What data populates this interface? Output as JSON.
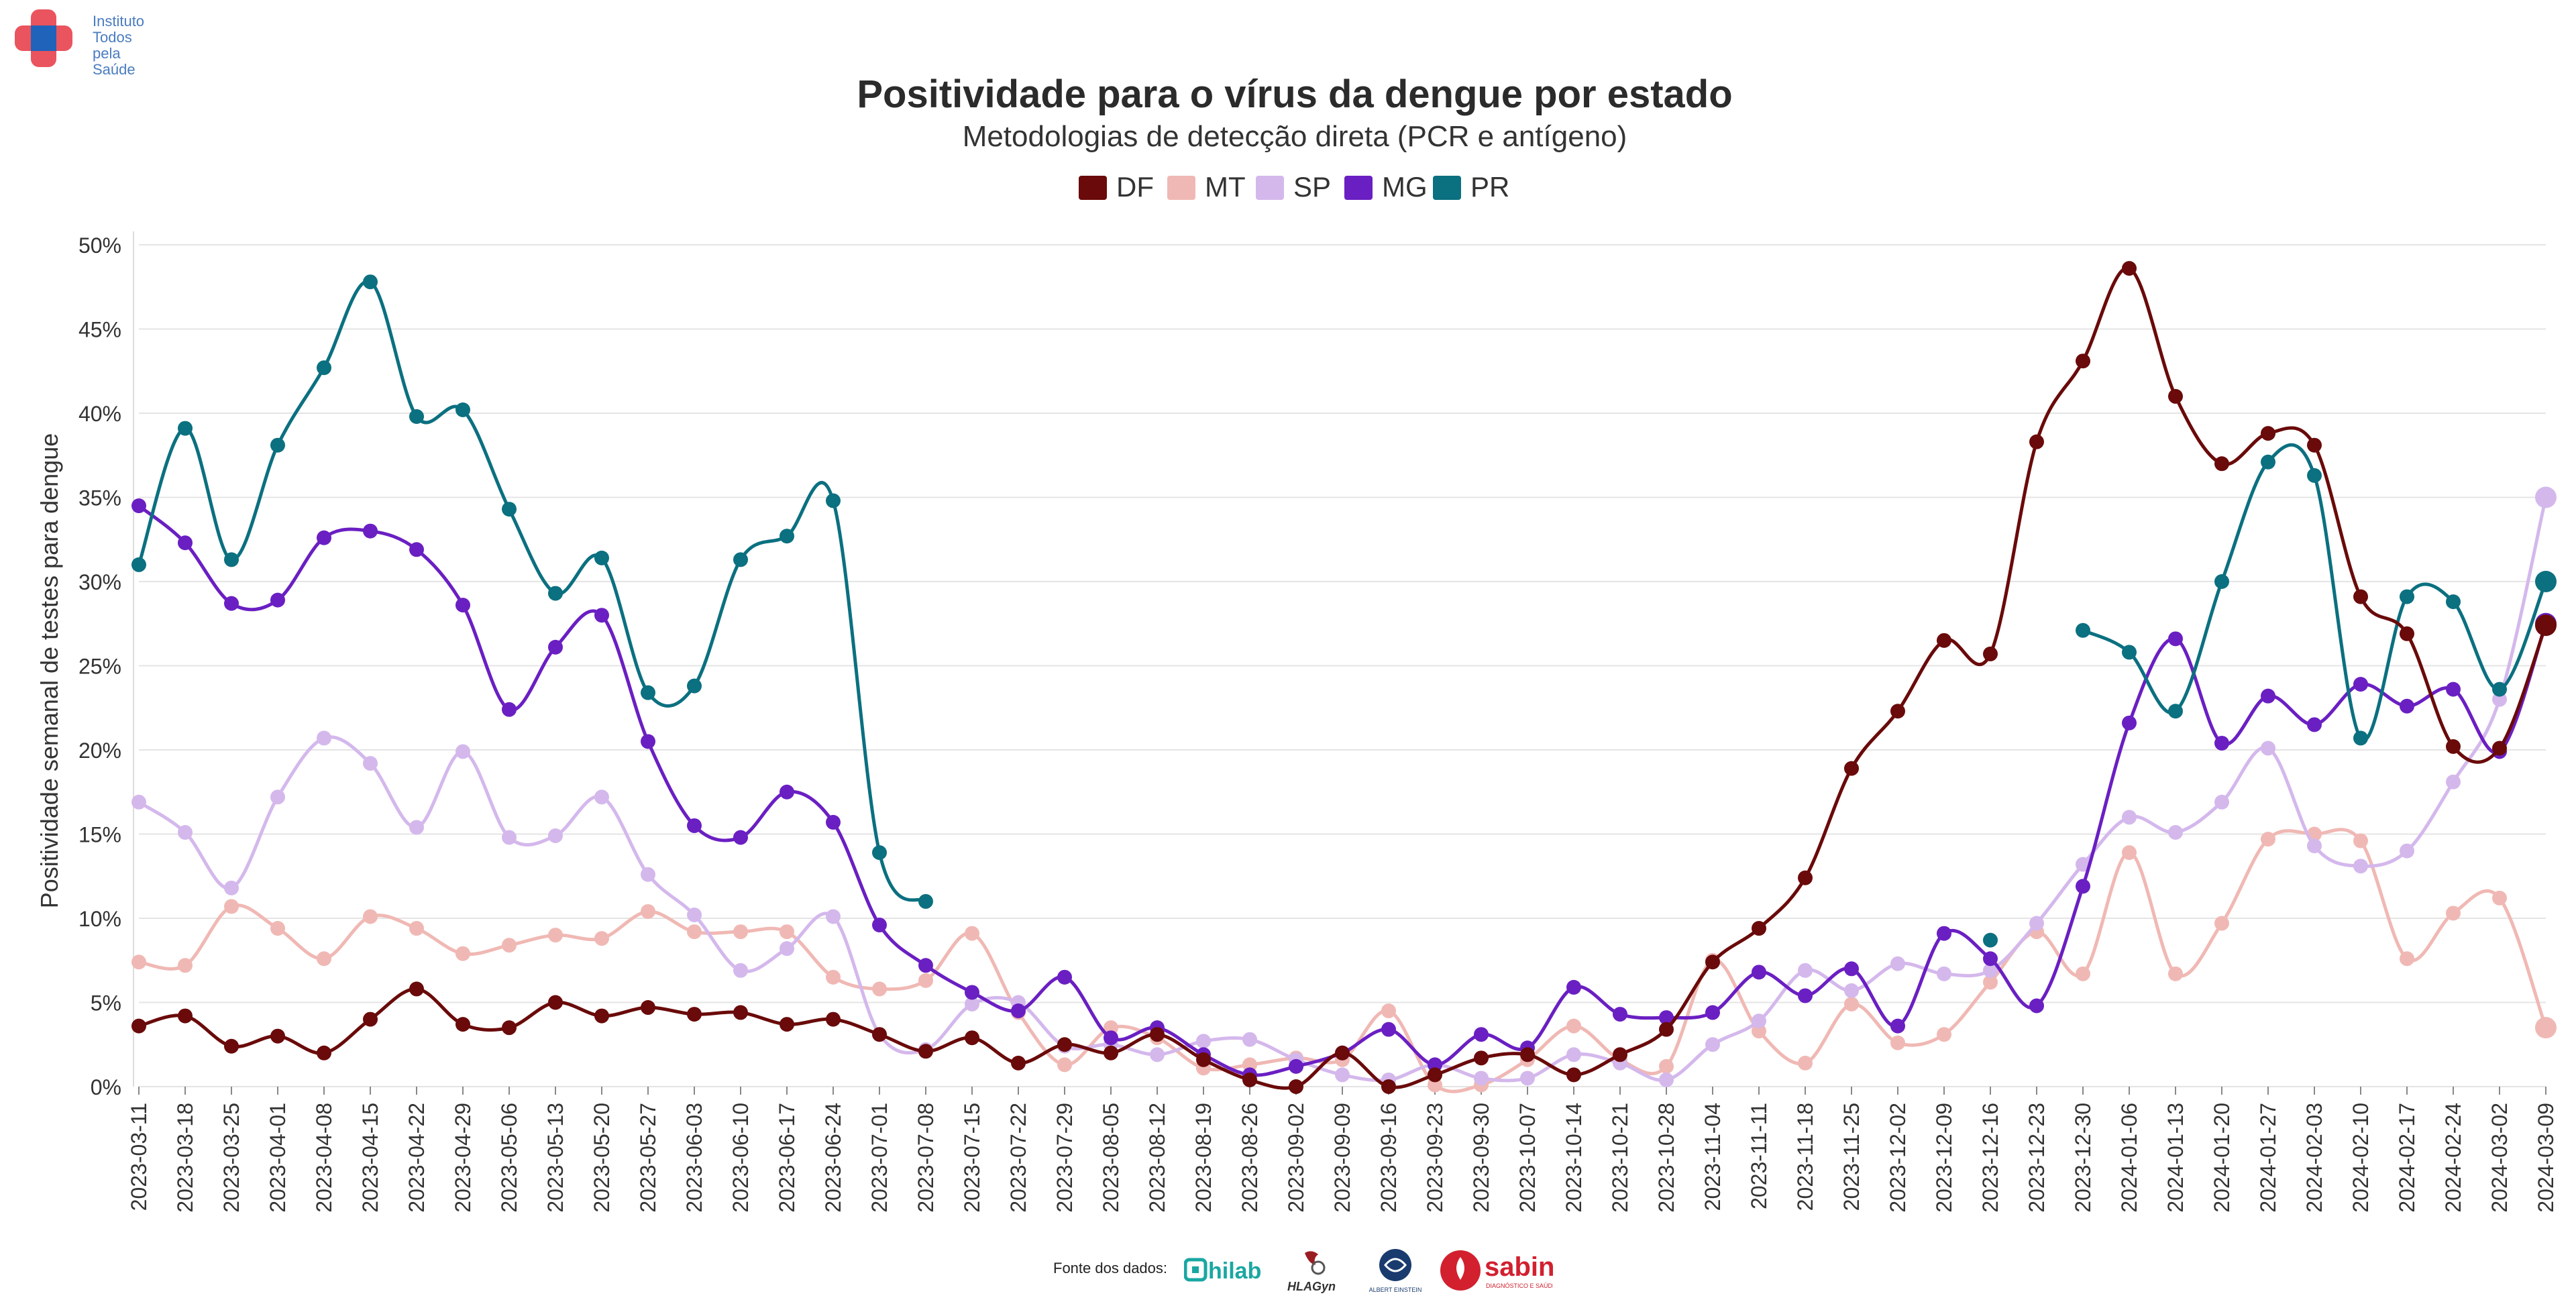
{
  "org": {
    "logo_lines": [
      "Instituto",
      "Todos",
      "pela",
      "Saúde"
    ],
    "colors": {
      "red": "#e8414d",
      "blue": "#1565c0"
    }
  },
  "sources": {
    "label": "Fonte dos dados:",
    "labs": [
      {
        "name": "hilab",
        "color": "#1aa7a2",
        "text": "hilab"
      },
      {
        "name": "hlagyn",
        "color": "#333333",
        "text": "HLAGyn"
      },
      {
        "name": "einstein",
        "color": "#1a3b6e",
        "text": "ALBERT EINSTEIN"
      },
      {
        "name": "sabin",
        "color": "#d2202f",
        "text": "sabin",
        "subtext": "DIAGNÓSTICO E SAÚDE"
      }
    ]
  },
  "chart_data": {
    "type": "line",
    "title": "Positividade para o vírus da dengue por estado",
    "subtitle": "Metodologias de detecção direta (PCR e antígeno)",
    "ylabel": "Positividade semanal de testes para dengue",
    "xlabel": "",
    "ylim": [
      0,
      50
    ],
    "yticks": [
      "0%",
      "5%",
      "10%",
      "15%",
      "20%",
      "25%",
      "30%",
      "35%",
      "40%",
      "45%",
      "50%"
    ],
    "grid": true,
    "legend": "top-center",
    "categories": [
      "2023-03-11",
      "2023-03-18",
      "2023-03-25",
      "2023-04-01",
      "2023-04-08",
      "2023-04-15",
      "2023-04-22",
      "2023-04-29",
      "2023-05-06",
      "2023-05-13",
      "2023-05-20",
      "2023-05-27",
      "2023-06-03",
      "2023-06-10",
      "2023-06-17",
      "2023-06-24",
      "2023-07-01",
      "2023-07-08",
      "2023-07-15",
      "2023-07-22",
      "2023-07-29",
      "2023-08-05",
      "2023-08-12",
      "2023-08-19",
      "2023-08-26",
      "2023-09-02",
      "2023-09-09",
      "2023-09-16",
      "2023-09-23",
      "2023-09-30",
      "2023-10-07",
      "2023-10-14",
      "2023-10-21",
      "2023-10-28",
      "2023-11-04",
      "2023-11-11",
      "2023-11-18",
      "2023-11-25",
      "2023-12-02",
      "2023-12-09",
      "2023-12-16",
      "2023-12-23",
      "2023-12-30",
      "2024-01-06",
      "2024-01-13",
      "2024-01-20",
      "2024-01-27",
      "2024-02-03",
      "2024-02-10",
      "2024-02-17",
      "2024-02-24",
      "2024-03-02",
      "2024-03-09"
    ],
    "series": [
      {
        "name": "MT",
        "color": "#f0b8b4",
        "values": [
          7.4,
          7.2,
          10.7,
          9.4,
          7.6,
          10.1,
          9.4,
          7.9,
          8.4,
          9.0,
          8.8,
          10.4,
          9.2,
          9.2,
          9.2,
          6.5,
          5.8,
          6.3,
          9.1,
          4.4,
          1.3,
          3.5,
          2.9,
          1.1,
          1.3,
          1.7,
          1.6,
          4.5,
          0.1,
          0.1,
          1.6,
          3.6,
          1.6,
          1.2,
          7.5,
          3.3,
          1.4,
          4.9,
          2.6,
          3.1,
          6.2,
          9.2,
          6.7,
          13.9,
          6.7,
          9.7,
          14.7,
          15.0,
          14.6,
          7.6,
          10.3,
          11.2,
          3.5
        ]
      },
      {
        "name": "SP",
        "color": "#d4b8ec",
        "values": [
          16.9,
          15.1,
          11.8,
          17.2,
          20.7,
          19.2,
          15.4,
          19.9,
          14.8,
          14.9,
          17.2,
          12.6,
          10.2,
          6.9,
          8.2,
          10.1,
          3.1,
          2.2,
          4.9,
          5.0,
          2.4,
          2.5,
          1.9,
          2.7,
          2.8,
          1.6,
          0.7,
          0.4,
          1.3,
          0.5,
          0.5,
          1.9,
          1.4,
          0.4,
          2.5,
          3.9,
          6.9,
          5.7,
          7.3,
          6.7,
          6.9,
          9.7,
          13.2,
          16.0,
          15.1,
          16.9,
          20.1,
          14.3,
          13.1,
          14.0,
          18.1,
          23.0,
          35.0
        ]
      },
      {
        "name": "MG",
        "color": "#6a1fc2",
        "values": [
          34.5,
          32.3,
          28.7,
          28.9,
          32.6,
          33.0,
          31.9,
          28.6,
          22.4,
          26.1,
          28.0,
          20.5,
          15.5,
          14.8,
          17.5,
          15.7,
          9.6,
          7.2,
          5.6,
          4.5,
          6.5,
          2.9,
          3.5,
          1.9,
          0.7,
          1.2,
          2.0,
          3.4,
          1.3,
          3.1,
          2.3,
          5.9,
          4.3,
          4.1,
          4.4,
          6.8,
          5.4,
          7.0,
          3.6,
          9.1,
          7.6,
          4.8,
          11.9,
          21.6,
          26.6,
          20.4,
          23.2,
          21.5,
          23.9,
          22.6,
          23.6,
          19.9,
          27.5
        ]
      },
      {
        "name": "PR",
        "color": "#0b7080",
        "values": [
          31.0,
          39.1,
          31.3,
          38.1,
          42.7,
          47.8,
          39.8,
          40.2,
          34.3,
          29.3,
          31.4,
          23.4,
          23.8,
          31.3,
          32.7,
          34.8,
          13.9,
          11.0,
          null,
          null,
          null,
          null,
          null,
          null,
          null,
          null,
          null,
          null,
          null,
          null,
          null,
          null,
          null,
          null,
          null,
          null,
          null,
          null,
          null,
          null,
          8.7,
          null,
          27.1,
          25.8,
          22.3,
          30.0,
          37.1,
          36.3,
          20.7,
          29.1,
          28.8,
          23.6,
          30.0
        ]
      },
      {
        "name": "DF",
        "color": "#6a0a0a",
        "values": [
          3.6,
          4.2,
          2.4,
          3.0,
          2.0,
          4.0,
          5.8,
          3.7,
          3.5,
          5.0,
          4.2,
          4.7,
          4.3,
          4.4,
          3.7,
          4.0,
          3.1,
          2.1,
          2.9,
          1.4,
          2.5,
          2.0,
          3.1,
          1.6,
          0.4,
          0.0,
          2.0,
          0.0,
          0.7,
          1.7,
          1.9,
          0.7,
          1.9,
          3.4,
          7.4,
          9.4,
          12.4,
          18.9,
          22.3,
          26.5,
          25.7,
          38.3,
          43.1,
          48.6,
          41.0,
          37.0,
          38.8,
          38.1,
          29.1,
          26.9,
          20.2,
          20.1,
          27.4
        ]
      }
    ],
    "legend_order": [
      "DF",
      "MT",
      "SP",
      "MG",
      "PR"
    ]
  }
}
